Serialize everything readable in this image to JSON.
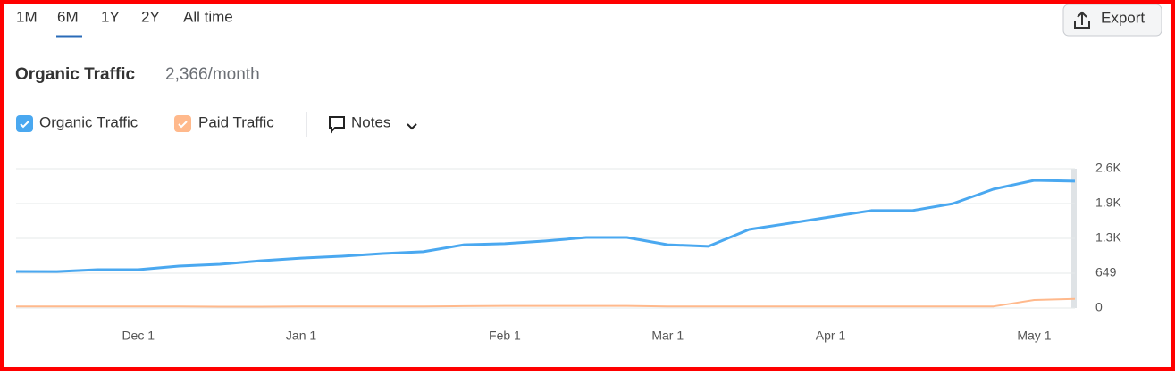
{
  "tabs": [
    "1M",
    "6M",
    "1Y",
    "2Y",
    "All time"
  ],
  "export_button": "Export",
  "notes_label": "Notes",
  "chart_data": {
    "type": "line",
    "title": "Organic Traffic",
    "subtitle": "2,366/month",
    "categories": [
      null,
      null,
      null,
      "Dec 1",
      null,
      null,
      null,
      "Jan 1",
      null,
      null,
      null,
      null,
      "Feb 1",
      null,
      null,
      null,
      "Mar 1",
      null,
      null,
      null,
      "Apr 1",
      null,
      null,
      null,
      null,
      "May 1",
      null
    ],
    "series": [
      {
        "name": "Organic Traffic",
        "color": "#4aa8f0",
        "values": [
          682,
          680,
          715,
          715,
          782,
          815,
          880,
          930,
          965,
          1015,
          1050,
          1180,
          1200,
          1250,
          1315,
          1315,
          1180,
          1150,
          1465,
          1580,
          1700,
          1815,
          1815,
          1945,
          2215,
          2380,
          2366
        ]
      },
      {
        "name": "Paid Traffic",
        "color": "#ffb98c",
        "values": [
          30,
          30,
          30,
          30,
          30,
          25,
          25,
          30,
          30,
          30,
          30,
          35,
          40,
          40,
          40,
          40,
          30,
          30,
          30,
          30,
          30,
          30,
          30,
          30,
          30,
          150,
          170
        ]
      }
    ],
    "ylim": [
      0,
      2596
    ],
    "yticks": [
      0,
      649,
      {
        "value": 1298,
        "label": "1.3K"
      },
      {
        "value": 1947,
        "label": "1.9K"
      },
      {
        "value": 2596,
        "label": "2.6K"
      }
    ],
    "grid": true
  }
}
